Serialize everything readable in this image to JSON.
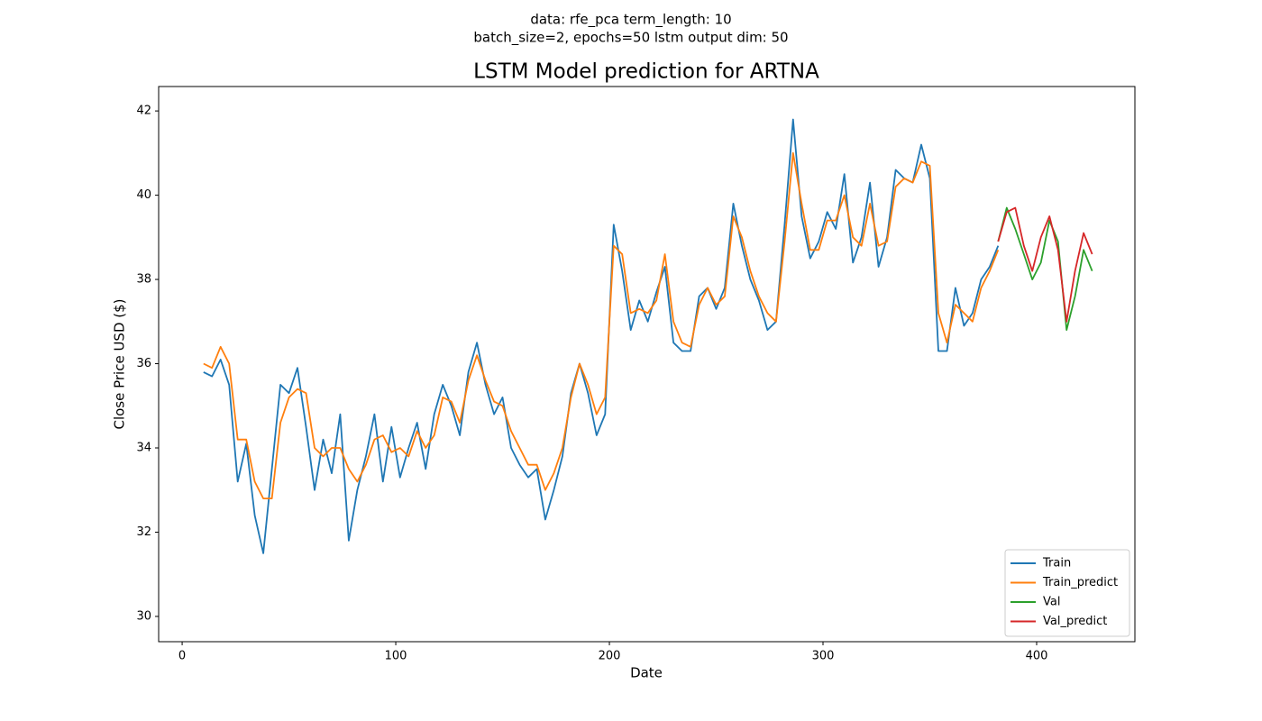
{
  "chart_data": {
    "type": "line",
    "suptitle": [
      "data: rfe_pca term_length: 10",
      "batch_size=2, epochs=50 lstm output dim: 50"
    ],
    "title": "LSTM Model prediction for ARTNA",
    "x_label": "Date",
    "y_label": "Close Price USD ($)",
    "xlim": [
      -11,
      446
    ],
    "ylim": [
      29.4,
      42.58
    ],
    "xticks": [
      0,
      100,
      200,
      300,
      400
    ],
    "yticks": [
      30,
      32,
      34,
      36,
      38,
      40,
      42
    ],
    "legend": "lower right",
    "grid": false,
    "series": [
      {
        "name": "Train",
        "color": "#1f77b4",
        "x": [
          10,
          14,
          18,
          22,
          26,
          30,
          34,
          38,
          42,
          46,
          50,
          54,
          58,
          62,
          66,
          70,
          74,
          78,
          82,
          86,
          90,
          94,
          98,
          102,
          106,
          110,
          114,
          118,
          122,
          126,
          130,
          134,
          138,
          142,
          146,
          150,
          154,
          158,
          162,
          166,
          170,
          174,
          178,
          182,
          186,
          190,
          194,
          198,
          202,
          206,
          210,
          214,
          218,
          222,
          226,
          230,
          234,
          238,
          242,
          246,
          250,
          254,
          258,
          262,
          266,
          270,
          274,
          278,
          282,
          286,
          290,
          294,
          298,
          302,
          306,
          310,
          314,
          318,
          322,
          326,
          330,
          334,
          338,
          342,
          346,
          350,
          354,
          358,
          362,
          366,
          370,
          374,
          378,
          382
        ],
        "values": [
          35.8,
          35.7,
          36.1,
          35.5,
          33.2,
          34.1,
          32.4,
          31.5,
          33.5,
          35.5,
          35.3,
          35.9,
          34.5,
          33.0,
          34.2,
          33.4,
          34.8,
          31.8,
          33.0,
          33.8,
          34.8,
          33.2,
          34.5,
          33.3,
          34.0,
          34.6,
          33.5,
          34.8,
          35.5,
          35.0,
          34.3,
          35.8,
          36.5,
          35.5,
          34.8,
          35.2,
          34.0,
          33.6,
          33.3,
          33.5,
          32.3,
          33.0,
          33.8,
          35.3,
          36.0,
          35.3,
          34.3,
          34.8,
          39.3,
          38.2,
          36.8,
          37.5,
          37.0,
          37.7,
          38.3,
          36.5,
          36.3,
          36.3,
          37.6,
          37.8,
          37.3,
          37.8,
          39.8,
          38.8,
          38.0,
          37.5,
          36.8,
          37.0,
          39.3,
          41.8,
          39.5,
          38.5,
          38.9,
          39.6,
          39.2,
          40.5,
          38.4,
          39.0,
          40.3,
          38.3,
          39.0,
          40.6,
          40.4,
          40.3,
          41.2,
          40.4,
          36.3,
          36.3,
          37.8,
          36.9,
          37.2,
          38.0,
          38.3,
          38.8
        ]
      },
      {
        "name": "Train_predict",
        "color": "#ff7f0e",
        "x": [
          10,
          14,
          18,
          22,
          26,
          30,
          34,
          38,
          42,
          46,
          50,
          54,
          58,
          62,
          66,
          70,
          74,
          78,
          82,
          86,
          90,
          94,
          98,
          102,
          106,
          110,
          114,
          118,
          122,
          126,
          130,
          134,
          138,
          142,
          146,
          150,
          154,
          158,
          162,
          166,
          170,
          174,
          178,
          182,
          186,
          190,
          194,
          198,
          202,
          206,
          210,
          214,
          218,
          222,
          226,
          230,
          234,
          238,
          242,
          246,
          250,
          254,
          258,
          262,
          266,
          270,
          274,
          278,
          282,
          286,
          290,
          294,
          298,
          302,
          306,
          310,
          314,
          318,
          322,
          326,
          330,
          334,
          338,
          342,
          346,
          350,
          354,
          358,
          362,
          366,
          370,
          374,
          378,
          382
        ],
        "values": [
          36.0,
          35.9,
          36.4,
          36.0,
          34.2,
          34.2,
          33.2,
          32.8,
          32.8,
          34.6,
          35.2,
          35.4,
          35.3,
          34.0,
          33.8,
          34.0,
          34.0,
          33.5,
          33.2,
          33.6,
          34.2,
          34.3,
          33.9,
          34.0,
          33.8,
          34.4,
          34.0,
          34.3,
          35.2,
          35.1,
          34.6,
          35.6,
          36.2,
          35.6,
          35.1,
          35.0,
          34.4,
          34.0,
          33.6,
          33.6,
          33.0,
          33.4,
          34.0,
          35.2,
          36.0,
          35.5,
          34.8,
          35.2,
          38.8,
          38.6,
          37.2,
          37.3,
          37.2,
          37.5,
          38.6,
          37.0,
          36.5,
          36.4,
          37.4,
          37.8,
          37.4,
          37.6,
          39.5,
          39.0,
          38.2,
          37.6,
          37.2,
          37.0,
          38.9,
          41.0,
          39.8,
          38.7,
          38.7,
          39.4,
          39.4,
          40.0,
          39.0,
          38.8,
          39.8,
          38.8,
          38.9,
          40.2,
          40.4,
          40.3,
          40.8,
          40.7,
          37.2,
          36.5,
          37.4,
          37.2,
          37.0,
          37.8,
          38.2,
          38.7
        ]
      },
      {
        "name": "Val",
        "color": "#2ca02c",
        "x": [
          382,
          386,
          390,
          394,
          398,
          402,
          406,
          410,
          414,
          418,
          422,
          426
        ],
        "values": [
          38.9,
          39.7,
          39.2,
          38.6,
          38.0,
          38.4,
          39.4,
          38.9,
          36.8,
          37.6,
          38.7,
          38.2
        ]
      },
      {
        "name": "Val_predict",
        "color": "#d62728",
        "x": [
          382,
          386,
          390,
          394,
          398,
          402,
          406,
          410,
          414,
          418,
          422,
          426
        ],
        "values": [
          38.9,
          39.6,
          39.7,
          38.8,
          38.2,
          39.0,
          39.5,
          38.7,
          37.0,
          38.2,
          39.1,
          38.6
        ]
      }
    ]
  }
}
